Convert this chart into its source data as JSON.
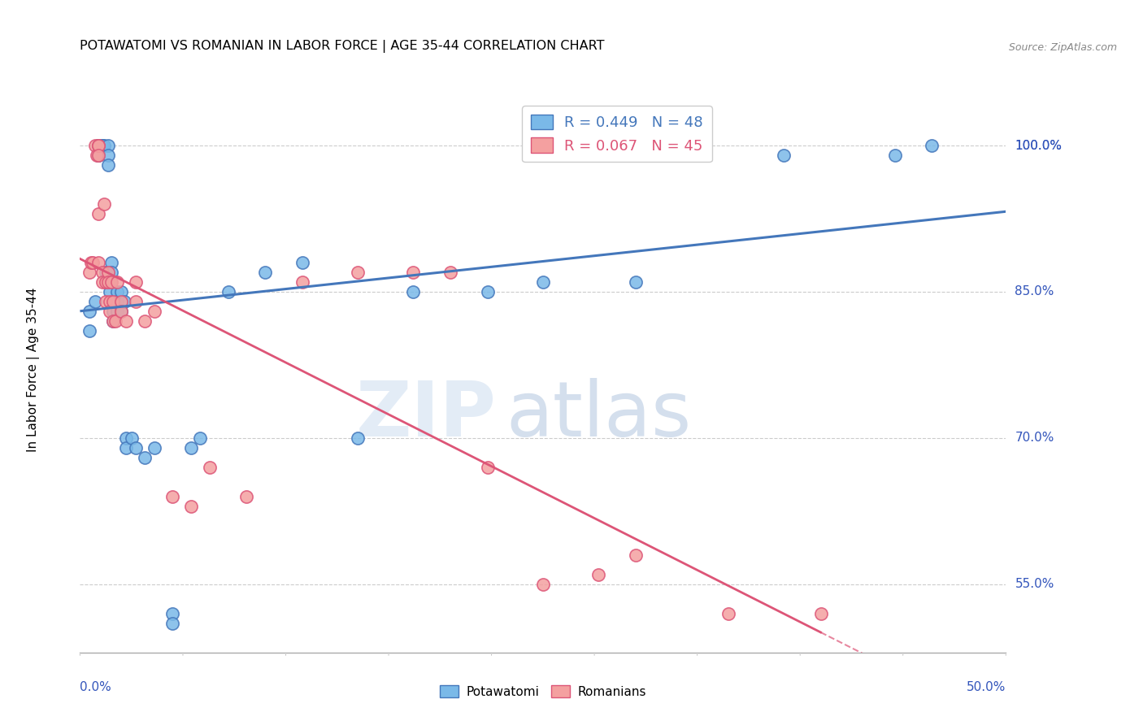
{
  "title": "POTAWATOMI VS ROMANIAN IN LABOR FORCE | AGE 35-44 CORRELATION CHART",
  "source": "Source: ZipAtlas.com",
  "ylabel": "In Labor Force | Age 35-44",
  "ytick_labels": [
    "100.0%",
    "85.0%",
    "70.0%",
    "55.0%"
  ],
  "ytick_values": [
    1.0,
    0.85,
    0.7,
    0.55
  ],
  "xlim": [
    0.0,
    0.5
  ],
  "ylim": [
    0.48,
    1.06
  ],
  "blue_color": "#7ab9e8",
  "pink_color": "#f4a0a0",
  "blue_line_color": "#4477bb",
  "pink_line_color": "#dd5577",
  "axis_color": "#3355bb",
  "grid_color": "#cccccc",
  "watermark_zip": "ZIP",
  "watermark_atlas": "atlas",
  "potawatomi_x": [
    0.005,
    0.005,
    0.008,
    0.01,
    0.01,
    0.01,
    0.01,
    0.012,
    0.012,
    0.013,
    0.014,
    0.015,
    0.015,
    0.015,
    0.016,
    0.016,
    0.017,
    0.017,
    0.018,
    0.018,
    0.019,
    0.02,
    0.02,
    0.02,
    0.022,
    0.022,
    0.024,
    0.025,
    0.025,
    0.028,
    0.03,
    0.035,
    0.04,
    0.05,
    0.05,
    0.06,
    0.065,
    0.08,
    0.1,
    0.12,
    0.15,
    0.18,
    0.22,
    0.25,
    0.3,
    0.38,
    0.44,
    0.46
  ],
  "potawatomi_y": [
    0.83,
    0.81,
    0.84,
    1.0,
    1.0,
    0.99,
    0.99,
    1.0,
    1.0,
    1.0,
    0.87,
    1.0,
    0.99,
    0.98,
    0.86,
    0.85,
    0.88,
    0.87,
    0.83,
    0.82,
    0.84,
    0.85,
    0.84,
    0.83,
    0.85,
    0.83,
    0.84,
    0.7,
    0.69,
    0.7,
    0.69,
    0.68,
    0.69,
    0.52,
    0.51,
    0.69,
    0.7,
    0.85,
    0.87,
    0.88,
    0.7,
    0.85,
    0.85,
    0.86,
    0.86,
    0.99,
    0.99,
    1.0
  ],
  "romanian_x": [
    0.005,
    0.006,
    0.007,
    0.008,
    0.009,
    0.01,
    0.01,
    0.01,
    0.01,
    0.01,
    0.012,
    0.012,
    0.013,
    0.014,
    0.014,
    0.015,
    0.015,
    0.016,
    0.016,
    0.017,
    0.018,
    0.018,
    0.019,
    0.02,
    0.022,
    0.022,
    0.025,
    0.03,
    0.03,
    0.035,
    0.04,
    0.05,
    0.06,
    0.07,
    0.09,
    0.12,
    0.15,
    0.18,
    0.2,
    0.22,
    0.25,
    0.28,
    0.3,
    0.35,
    0.4
  ],
  "romanian_y": [
    0.87,
    0.88,
    0.88,
    1.0,
    0.99,
    1.0,
    1.0,
    0.99,
    0.93,
    0.88,
    0.87,
    0.86,
    0.94,
    0.86,
    0.84,
    0.87,
    0.86,
    0.84,
    0.83,
    0.86,
    0.84,
    0.82,
    0.82,
    0.86,
    0.84,
    0.83,
    0.82,
    0.86,
    0.84,
    0.82,
    0.83,
    0.64,
    0.63,
    0.67,
    0.64,
    0.86,
    0.87,
    0.87,
    0.87,
    0.67,
    0.55,
    0.56,
    0.58,
    0.52,
    0.52
  ],
  "legend_r1_color": "#4477bb",
  "legend_r2_color": "#dd5577",
  "legend_r1": "R = 0.449",
  "legend_n1": "N = 48",
  "legend_r2": "R = 0.067",
  "legend_n2": "N = 45"
}
